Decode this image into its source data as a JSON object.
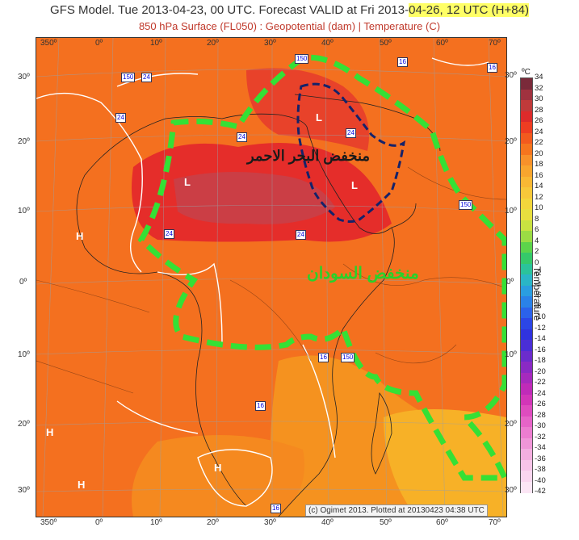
{
  "header": {
    "title_main": "GFS Model. Tue 2013-04-23, 00 UTC. Forecast VALID at Fri 2013-",
    "title_highlight": "04-26, 12 UTC (H+84)",
    "subtitle": "850 hPa Surface (FL050) : Geopotential (dam) | Temperature (C)"
  },
  "map": {
    "copyright": "(c) Ogimet 2013. Plotted at 20130423 04:38 UTC",
    "lon_labels": [
      "350º",
      "0º",
      "10º",
      "20º",
      "30º",
      "40º",
      "50º",
      "60º",
      "70º"
    ],
    "lat_left": [
      "30º",
      "20º",
      "10º",
      "0º",
      "10º",
      "20º",
      "30º"
    ],
    "lat_right": [
      "30º",
      "20º",
      "10º",
      "0º",
      "10º",
      "20º",
      "30º"
    ],
    "annotations": {
      "red_sea_low": "منخفض البحر الاحمر",
      "sudan_low": "منخفض السودان"
    },
    "pressure_markers": [
      "L",
      "L",
      "L",
      "H",
      "H",
      "H",
      "H"
    ],
    "contour_labels": [
      "150",
      "24",
      "24",
      "24",
      "24",
      "24",
      "150",
      "16",
      "16",
      "150",
      "24",
      "16",
      "150",
      "16",
      "16"
    ]
  },
  "colorbar": {
    "unit": "ºC",
    "title": "Temperature",
    "ticks": [
      "34",
      "32",
      "30",
      "28",
      "26",
      "24",
      "22",
      "20",
      "18",
      "16",
      "14",
      "12",
      "10",
      "8",
      "6",
      "4",
      "2",
      "0",
      "-2",
      "-4",
      "-6",
      "-8",
      "-10",
      "-12",
      "-14",
      "-16",
      "-18",
      "-20",
      "-22",
      "-24",
      "-26",
      "-28",
      "-30",
      "-32",
      "-34",
      "-36",
      "-38",
      "-40",
      "-42"
    ],
    "colors": [
      "#7a2a3a",
      "#a0323f",
      "#c03a3a",
      "#dd2b2b",
      "#ee3d22",
      "#f25a1e",
      "#f5751e",
      "#f7912a",
      "#f8a52e",
      "#f9b834",
      "#f7c83a",
      "#f2d63c",
      "#e8df3f",
      "#c9e241",
      "#9bdc44",
      "#5cd44b",
      "#35c96a",
      "#2bc39a",
      "#2ab6c6",
      "#2a9ee0",
      "#2a82e8",
      "#2b62ea",
      "#2c46e6",
      "#3033de",
      "#4a2ed6",
      "#6b2ccc",
      "#8a2ac4",
      "#a62abd",
      "#c02bb8",
      "#d236b8",
      "#de4cbf",
      "#e664c8",
      "#ec7dd0",
      "#f096d8",
      "#f4aee0",
      "#f7c4e8",
      "#fad6ef",
      "#fce6f5"
    ]
  }
}
